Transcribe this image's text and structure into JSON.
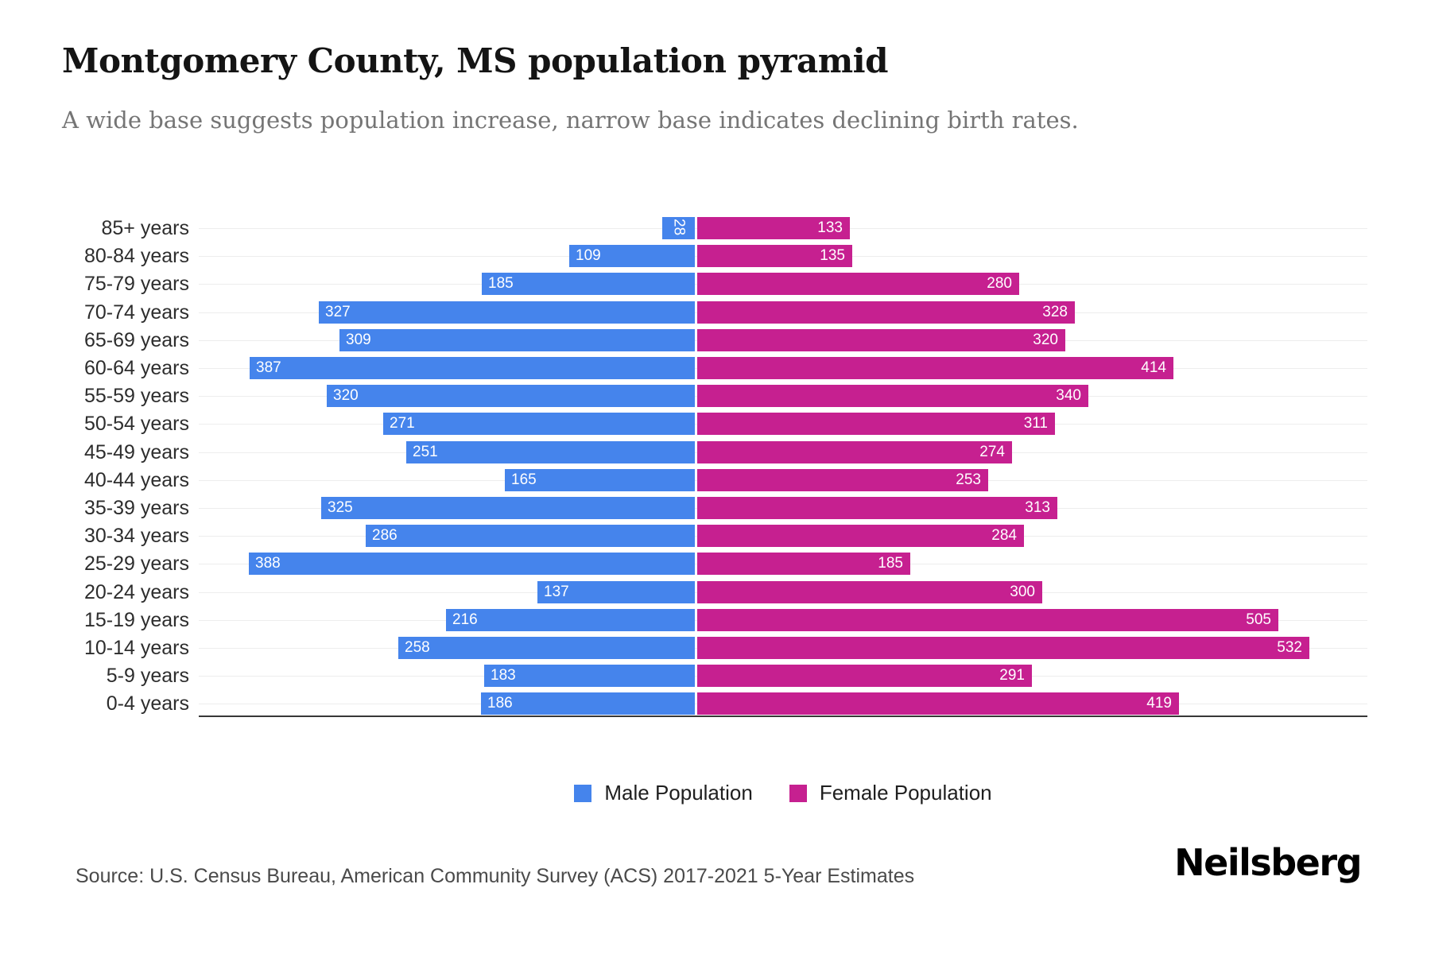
{
  "header": {
    "title": "Montgomery County, MS population pyramid",
    "subtitle": "A wide base suggests population increase, narrow base indicates declining birth rates."
  },
  "chart_data": {
    "type": "bar",
    "variant": "population-pyramid",
    "title": "Montgomery County, MS population pyramid",
    "categories": [
      "85+ years",
      "80-84 years",
      "75-79 years",
      "70-74 years",
      "65-69 years",
      "60-64 years",
      "55-59 years",
      "50-54 years",
      "45-49 years",
      "40-44 years",
      "35-39 years",
      "30-34 years",
      "25-29 years",
      "20-24 years",
      "15-19 years",
      "10-14 years",
      "5-9 years",
      "0-4 years"
    ],
    "series": [
      {
        "name": "Male Population",
        "side": "left",
        "color": "#4584EC",
        "values": [
          28,
          109,
          185,
          327,
          309,
          387,
          320,
          271,
          251,
          165,
          325,
          286,
          388,
          137,
          216,
          258,
          183,
          186
        ]
      },
      {
        "name": "Female Population",
        "side": "right",
        "color": "#C62090",
        "values": [
          133,
          135,
          280,
          328,
          320,
          414,
          340,
          311,
          274,
          253,
          313,
          284,
          185,
          300,
          505,
          532,
          291,
          419
        ]
      }
    ],
    "value_labels": "inside-end",
    "legend_position": "bottom",
    "grid": "horizontal-light",
    "axis_left_max_units": 430,
    "axis_right_max_units": 585
  },
  "colors": {
    "male": "#4584EC",
    "female": "#C62090",
    "gridline": "#ededed",
    "axis": "#373737",
    "value_text": "#ffffff"
  },
  "footer": {
    "source": "Source: U.S. Census Bureau, American Community Survey (ACS) 2017-2021 5-Year Estimates",
    "brand": "Neilsberg"
  }
}
